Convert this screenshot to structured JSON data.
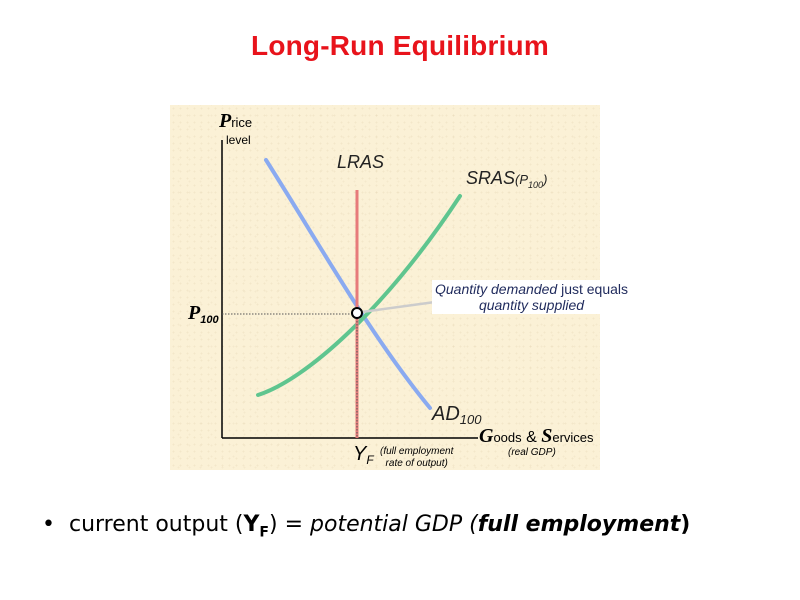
{
  "title": "Long-Run Equilibrium",
  "axes": {
    "y_label_initial": "P",
    "y_label_rest": "rice",
    "y_label_sub": "level",
    "x_label_initial_1": "G",
    "x_label_rest_1": "oods",
    "x_label_amp": " & ",
    "x_label_initial_2": "S",
    "x_label_rest_2": "ervices",
    "x_label_sub": "(real GDP)"
  },
  "curves": {
    "lras": "LRAS",
    "sras_main": "SRAS",
    "sras_paren_open": "(P",
    "sras_sub": "100",
    "sras_paren_close": ")",
    "ad_main": "AD",
    "ad_sub": "100"
  },
  "markers": {
    "price_main": "P",
    "price_sub": "100",
    "output_main": "Y",
    "output_sub": "F",
    "output_note_line1": "(full employment",
    "output_note_line2": "rate of output)"
  },
  "callout": {
    "part1": "Quantity demanded",
    "part2": " just equals ",
    "part3": "quantity supplied"
  },
  "bullet": {
    "text1": "current output (",
    "y": "Y",
    "f": "F",
    "text2": ") = ",
    "text3": "potential GDP (",
    "text4": "full employment",
    "text5": ")"
  },
  "colors": {
    "title": "#e8131b",
    "lras": "#e77b7b",
    "sras": "#5fc58f",
    "ad": "#8aaaf0",
    "callout_text": "#1f2a5c"
  }
}
